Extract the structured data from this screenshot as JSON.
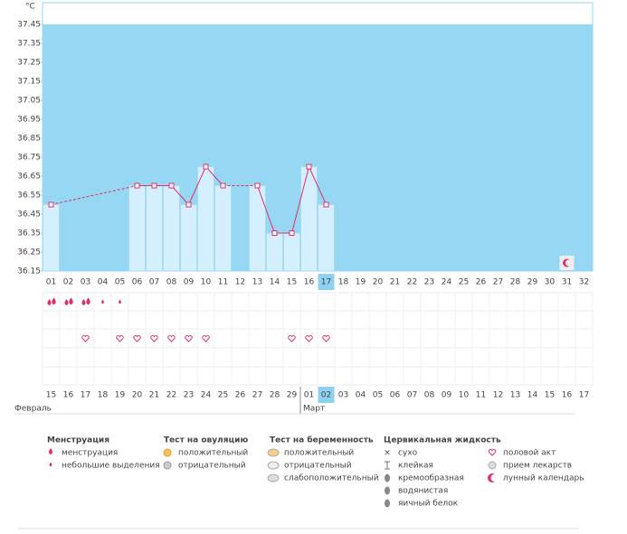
{
  "chart_data": {
    "type": "line",
    "y_label": "°C",
    "categories": [
      "01",
      "02",
      "03",
      "04",
      "05",
      "06",
      "07",
      "08",
      "09",
      "10",
      "11",
      "12",
      "13",
      "14",
      "15",
      "16",
      "17",
      "18",
      "19",
      "20",
      "21",
      "22",
      "23",
      "24",
      "25",
      "26",
      "27",
      "28",
      "29",
      "30",
      "31",
      "32"
    ],
    "series": [
      {
        "color": "#e0306a",
        "values": [
          36.5,
          null,
          null,
          null,
          null,
          36.6,
          36.6,
          36.6,
          36.5,
          36.7,
          36.6,
          null,
          36.6,
          36.35,
          36.35,
          36.7,
          36.5,
          null,
          null,
          null,
          null,
          null,
          null,
          null,
          null,
          null,
          null,
          null,
          null,
          null,
          null,
          null
        ]
      }
    ],
    "bar_color": "#d4efff",
    "plot_color": "#96d8f4",
    "ylim": [
      36.15,
      37.45
    ],
    "yticks": [
      36.15,
      36.25,
      36.35,
      36.45,
      36.55,
      36.65,
      36.75,
      36.85,
      36.95,
      37.05,
      37.15,
      37.25,
      37.35,
      37.45
    ],
    "current_index": 16
  },
  "calendar": {
    "menstruation_days": [
      0,
      1,
      2
    ],
    "spotting_days": [
      3,
      4
    ],
    "intercourse_days": [
      2,
      4,
      5,
      6,
      7,
      8,
      9,
      14,
      15,
      16
    ],
    "moon_days": [
      30
    ],
    "dates": [
      "15",
      "16",
      "17",
      "18",
      "19",
      "20",
      "21",
      "22",
      "23",
      "24",
      "25",
      "26",
      "27",
      "28",
      "29",
      "01",
      "02",
      "03",
      "04",
      "05",
      "06",
      "07",
      "08",
      "09",
      "10",
      "11",
      "12",
      "13",
      "14",
      "15",
      "16",
      "17"
    ],
    "red_dates": [
      3,
      4,
      10,
      11,
      17,
      18,
      24,
      25,
      31
    ],
    "current_date_index": 16,
    "months": [
      {
        "label": "Февраль",
        "start": 0
      },
      {
        "label": "Март",
        "start": 15
      }
    ]
  },
  "legend": [
    {
      "title": "Менструация",
      "items": [
        "менструация",
        "небольшие выделения"
      ]
    },
    {
      "title": "Тест на овуляцию",
      "items": [
        "положительный",
        "отрицательный"
      ]
    },
    {
      "title": "Тест на беременность",
      "items": [
        "положительный",
        "отрицательный",
        "слабоположительный"
      ]
    },
    {
      "title": "Цервикальная жидкость",
      "items": [
        "сухо",
        "клейкая",
        "кремообразная",
        "водянистая",
        "яичный белок"
      ]
    },
    {
      "items": [
        "половой акт",
        "прием лекарств",
        "лунный календарь"
      ]
    }
  ]
}
